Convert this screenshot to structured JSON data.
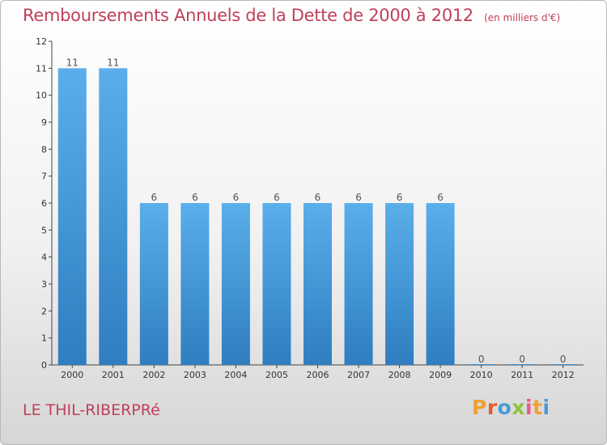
{
  "chart_data": {
    "type": "bar",
    "title": "Remboursements Annuels de la Dette de 2000 à 2012",
    "subtitle": "(en milliers d'€)",
    "categories": [
      "2000",
      "2001",
      "2002",
      "2003",
      "2004",
      "2005",
      "2006",
      "2007",
      "2008",
      "2009",
      "2010",
      "2011",
      "2012"
    ],
    "values": [
      11,
      11,
      6,
      6,
      6,
      6,
      6,
      6,
      6,
      6,
      0,
      0,
      0
    ],
    "data_labels": [
      "11",
      "11",
      "6",
      "6",
      "6",
      "6",
      "6",
      "6",
      "6",
      "6",
      "0",
      "0",
      "0"
    ],
    "ylim": [
      0,
      12
    ],
    "yticks": [
      0,
      1,
      2,
      3,
      4,
      5,
      6,
      7,
      8,
      9,
      10,
      11,
      12
    ],
    "xlabel": "",
    "ylabel": "",
    "grid": false,
    "bar_color_top": "#5aaeea",
    "bar_color_bottom": "#2f7ec0"
  },
  "footer": {
    "commune": "LE THIL-RIBERPRé",
    "logo_letters": [
      {
        "char": "P",
        "color": "#f0a030"
      },
      {
        "char": "r",
        "color": "#e85a2a"
      },
      {
        "char": "o",
        "color": "#4a9ad8"
      },
      {
        "char": "x",
        "color": "#8cc43c"
      },
      {
        "char": "i",
        "color": "#e85a8a"
      },
      {
        "char": "t",
        "color": "#f0a030"
      },
      {
        "char": "i",
        "color": "#4a9ad8"
      }
    ]
  }
}
